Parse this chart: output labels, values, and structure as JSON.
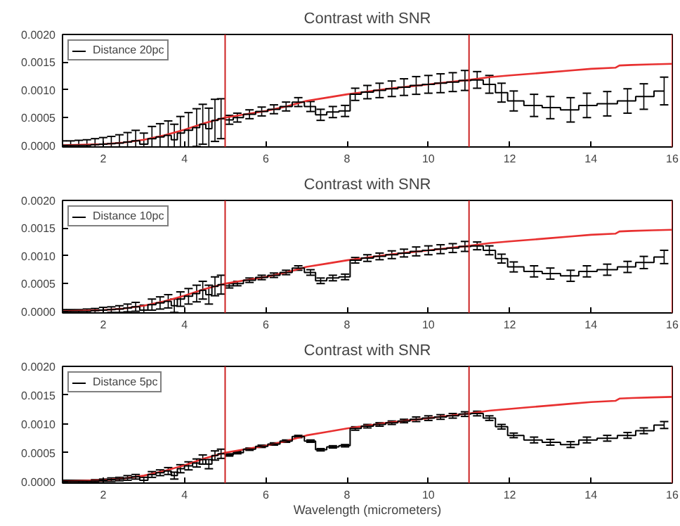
{
  "chart_data": [
    {
      "type": "line",
      "title": "Contrast with SNR",
      "xlim": [
        1,
        16
      ],
      "ylim": [
        -3e-05,
        0.002
      ],
      "xticks": [
        2,
        4,
        6,
        8,
        10,
        12,
        14,
        16
      ],
      "yticks": [
        {
          "value": 0,
          "label": "0.0000"
        },
        {
          "value": 0.0005,
          "label": "0.0005"
        },
        {
          "value": 0.001,
          "label": "0.0010"
        },
        {
          "value": 0.0015,
          "label": "0.0015"
        },
        {
          "value": 0.002,
          "label": "0.0020"
        }
      ],
      "grid": false,
      "legend": "top left",
      "marker": "none",
      "ref_lines": [
        {
          "axis": "x",
          "value": 5,
          "color": "#cc2222"
        },
        {
          "axis": "x",
          "value": 11,
          "color": "#cc2222"
        },
        {
          "axis": "x",
          "value": 16,
          "color": "#cc2222"
        }
      ],
      "series": [
        {
          "color": "#e83030",
          "x": [
            1,
            2,
            2.5,
            3,
            3.5,
            4,
            4.5,
            5,
            5.5,
            6,
            6.5,
            7,
            7.5,
            8,
            8.5,
            9,
            9.5,
            10,
            10.5,
            11,
            11.5,
            12,
            12.5,
            13,
            13.5,
            14,
            14.6,
            14.7,
            15,
            15.5,
            16
          ],
          "values": [
            0,
            2e-05,
            5e-05,
            0.0001,
            0.00018,
            0.00028,
            0.0004,
            0.0005,
            0.00056,
            0.00062,
            0.0007,
            0.0008,
            0.00086,
            0.00092,
            0.00097,
            0.00102,
            0.00106,
            0.0011,
            0.00114,
            0.00118,
            0.00123,
            0.00126,
            0.00129,
            0.00132,
            0.00135,
            0.00138,
            0.0014,
            0.00144,
            0.00145,
            0.00146,
            0.00147
          ]
        },
        {
          "name": "Distance 20pc",
          "type": "step",
          "color": "#000000",
          "x": [
            1.0,
            1.2,
            1.4,
            1.6,
            1.8,
            2.0,
            2.2,
            2.4,
            2.6,
            2.8,
            3.0,
            3.2,
            3.4,
            3.6,
            3.75,
            3.9,
            4.1,
            4.3,
            4.45,
            4.6,
            4.75,
            4.9,
            5.1,
            5.3,
            5.6,
            5.9,
            6.2,
            6.5,
            6.8,
            7.1,
            7.35,
            7.65,
            7.95,
            8.2,
            8.5,
            8.8,
            9.1,
            9.4,
            9.7,
            10.0,
            10.3,
            10.6,
            10.9,
            11.2,
            11.5,
            11.8,
            12.1,
            12.6,
            13.0,
            13.5,
            13.9,
            14.4,
            14.9,
            15.3,
            15.8
          ],
          "values": [
            0,
            0,
            0,
            0,
            1e-05,
            2e-05,
            3e-05,
            4e-05,
            6e-05,
            8e-05,
            2e-05,
            0.00012,
            0.00015,
            0.00018,
            0.0001,
            0.00022,
            0.00027,
            0.00032,
            0.00038,
            0.0003,
            0.00045,
            0.00048,
            0.00046,
            0.0005,
            0.00056,
            0.00061,
            0.00065,
            0.0007,
            0.00078,
            0.0007,
            0.00055,
            0.0006,
            0.00062,
            0.00092,
            0.00096,
            0.00099,
            0.00102,
            0.00105,
            0.00108,
            0.0011,
            0.00112,
            0.00114,
            0.00117,
            0.00118,
            0.0011,
            0.00095,
            0.0008,
            0.00072,
            0.00068,
            0.00064,
            0.00072,
            0.00075,
            0.0008,
            0.00088,
            0.00098
          ],
          "errors": [
            8e-05,
            8e-05,
            9e-05,
            0.0001,
            0.00011,
            0.00012,
            0.00013,
            0.00015,
            0.00017,
            0.00019,
            0.0002,
            0.00022,
            0.00024,
            0.00026,
            0.00028,
            0.0003,
            0.00032,
            0.00034,
            0.00036,
            0.00037,
            0.00038,
            0.00036,
            8e-05,
            8e-05,
            8e-05,
            8e-05,
            8e-05,
            8e-05,
            8e-05,
            9e-05,
            0.0001,
            0.0001,
            0.0001,
            0.00011,
            0.00012,
            0.00013,
            0.00014,
            0.00015,
            0.00016,
            0.00016,
            0.00017,
            0.00017,
            0.00018,
            0.00015,
            0.00016,
            0.00017,
            0.00018,
            0.0002,
            0.0002,
            0.00022,
            0.00022,
            0.00022,
            0.00022,
            0.00023,
            0.00025
          ]
        }
      ]
    },
    {
      "type": "line",
      "title": "Contrast with SNR",
      "xlim": [
        1,
        16
      ],
      "ylim": [
        -3e-05,
        0.002
      ],
      "xticks": [
        2,
        4,
        6,
        8,
        10,
        12,
        14,
        16
      ],
      "yticks": [
        {
          "value": 0,
          "label": "0.0000"
        },
        {
          "value": 0.0005,
          "label": "0.0005"
        },
        {
          "value": 0.001,
          "label": "0.0010"
        },
        {
          "value": 0.0015,
          "label": "0.0015"
        },
        {
          "value": 0.002,
          "label": "0.0020"
        }
      ],
      "grid": false,
      "legend": "top left",
      "marker": "none",
      "ref_lines": [
        {
          "axis": "x",
          "value": 5,
          "color": "#cc2222"
        },
        {
          "axis": "x",
          "value": 11,
          "color": "#cc2222"
        },
        {
          "axis": "x",
          "value": 16,
          "color": "#cc2222"
        }
      ],
      "series": [
        {
          "color": "#e83030",
          "x": [
            1,
            2,
            2.5,
            3,
            3.5,
            4,
            4.5,
            5,
            5.5,
            6,
            6.5,
            7,
            7.5,
            8,
            8.5,
            9,
            9.5,
            10,
            10.5,
            11,
            11.5,
            12,
            12.5,
            13,
            13.5,
            14,
            14.6,
            14.7,
            15,
            15.5,
            16
          ],
          "values": [
            0,
            2e-05,
            5e-05,
            0.0001,
            0.00018,
            0.00028,
            0.0004,
            0.0005,
            0.00056,
            0.00062,
            0.0007,
            0.0008,
            0.00086,
            0.00092,
            0.00097,
            0.00102,
            0.00106,
            0.0011,
            0.00114,
            0.00118,
            0.00123,
            0.00126,
            0.00129,
            0.00132,
            0.00135,
            0.00138,
            0.0014,
            0.00144,
            0.00145,
            0.00146,
            0.00147
          ]
        },
        {
          "name": "Distance 10pc",
          "type": "step",
          "color": "#000000",
          "x": [
            1.0,
            1.2,
            1.4,
            1.6,
            1.8,
            2.0,
            2.2,
            2.4,
            2.6,
            2.8,
            3.0,
            3.2,
            3.4,
            3.6,
            3.75,
            3.9,
            4.1,
            4.3,
            4.45,
            4.6,
            4.75,
            4.9,
            5.1,
            5.3,
            5.6,
            5.9,
            6.2,
            6.5,
            6.8,
            7.1,
            7.35,
            7.65,
            7.95,
            8.2,
            8.5,
            8.8,
            9.1,
            9.4,
            9.7,
            10.0,
            10.3,
            10.6,
            10.9,
            11.2,
            11.5,
            11.8,
            12.1,
            12.6,
            13.0,
            13.5,
            13.9,
            14.4,
            14.9,
            15.3,
            15.8
          ],
          "values": [
            0,
            0,
            0,
            0,
            1e-05,
            2e-05,
            3e-05,
            4e-05,
            6e-05,
            8e-05,
            2e-05,
            0.00012,
            0.00015,
            0.00018,
            0.0001,
            0.00022,
            0.00027,
            0.00032,
            0.00038,
            0.0003,
            0.00045,
            0.00048,
            0.00046,
            0.0005,
            0.00056,
            0.00061,
            0.00065,
            0.0007,
            0.00078,
            0.0007,
            0.00055,
            0.0006,
            0.00062,
            0.00092,
            0.00096,
            0.00099,
            0.00102,
            0.00105,
            0.00108,
            0.0011,
            0.00112,
            0.00114,
            0.00117,
            0.00118,
            0.0011,
            0.00095,
            0.0008,
            0.00072,
            0.00068,
            0.00064,
            0.00072,
            0.00075,
            0.0008,
            0.00088,
            0.00098
          ],
          "errors": [
            3e-05,
            3e-05,
            3e-05,
            4e-05,
            4e-05,
            5e-05,
            5e-05,
            6e-05,
            7e-05,
            8e-05,
            9e-05,
            0.0001,
            0.00011,
            0.00012,
            0.00012,
            0.00013,
            0.00014,
            0.00015,
            0.00016,
            0.00017,
            0.00017,
            0.00017,
            4e-05,
            4e-05,
            4e-05,
            4e-05,
            4e-05,
            4e-05,
            4e-05,
            5e-05,
            5e-05,
            5e-05,
            5e-05,
            5e-05,
            6e-05,
            6e-05,
            7e-05,
            7e-05,
            8e-05,
            8e-05,
            8e-05,
            8e-05,
            9e-05,
            7e-05,
            8e-05,
            8e-05,
            9e-05,
            0.0001,
            0.0001,
            0.0001,
            0.0001,
            0.0001,
            0.0001,
            0.00011,
            0.00012
          ]
        }
      ]
    },
    {
      "type": "line",
      "title": "Contrast with SNR",
      "xlabel": "Wavelength (micrometers)",
      "xlim": [
        1,
        16
      ],
      "ylim": [
        -3e-05,
        0.002
      ],
      "xticks": [
        2,
        4,
        6,
        8,
        10,
        12,
        14,
        16
      ],
      "yticks": [
        {
          "value": 0,
          "label": "0.0000"
        },
        {
          "value": 0.0005,
          "label": "0.0005"
        },
        {
          "value": 0.001,
          "label": "0.0010"
        },
        {
          "value": 0.0015,
          "label": "0.0015"
        },
        {
          "value": 0.002,
          "label": "0.0020"
        }
      ],
      "grid": false,
      "legend": "top left",
      "marker": "none",
      "ref_lines": [
        {
          "axis": "x",
          "value": 5,
          "color": "#cc2222"
        },
        {
          "axis": "x",
          "value": 11,
          "color": "#cc2222"
        },
        {
          "axis": "x",
          "value": 16,
          "color": "#cc2222"
        }
      ],
      "series": [
        {
          "color": "#e83030",
          "x": [
            1,
            2,
            2.5,
            3,
            3.5,
            4,
            4.5,
            5,
            5.5,
            6,
            6.5,
            7,
            7.5,
            8,
            8.5,
            9,
            9.5,
            10,
            10.5,
            11,
            11.5,
            12,
            12.5,
            13,
            13.5,
            14,
            14.6,
            14.7,
            15,
            15.5,
            16
          ],
          "values": [
            0,
            2e-05,
            5e-05,
            0.0001,
            0.00018,
            0.00028,
            0.0004,
            0.0005,
            0.00056,
            0.00062,
            0.0007,
            0.0008,
            0.00086,
            0.00092,
            0.00097,
            0.00102,
            0.00106,
            0.0011,
            0.00114,
            0.00118,
            0.00123,
            0.00126,
            0.00129,
            0.00132,
            0.00135,
            0.00138,
            0.0014,
            0.00144,
            0.00145,
            0.00146,
            0.00147
          ]
        },
        {
          "name": "Distance 5pc",
          "type": "step",
          "color": "#000000",
          "x": [
            1.0,
            1.2,
            1.4,
            1.6,
            1.8,
            2.0,
            2.2,
            2.4,
            2.6,
            2.8,
            3.0,
            3.2,
            3.4,
            3.6,
            3.75,
            3.9,
            4.1,
            4.3,
            4.45,
            4.6,
            4.75,
            4.9,
            5.1,
            5.3,
            5.6,
            5.9,
            6.2,
            6.5,
            6.8,
            7.1,
            7.35,
            7.65,
            7.95,
            8.2,
            8.5,
            8.8,
            9.1,
            9.4,
            9.7,
            10.0,
            10.3,
            10.6,
            10.9,
            11.2,
            11.5,
            11.8,
            12.1,
            12.6,
            13.0,
            13.5,
            13.9,
            14.4,
            14.9,
            15.3,
            15.8
          ],
          "values": [
            0,
            0,
            0,
            0,
            1e-05,
            2e-05,
            3e-05,
            4e-05,
            6e-05,
            8e-05,
            2e-05,
            0.00012,
            0.00015,
            0.00018,
            0.0001,
            0.00022,
            0.00027,
            0.00032,
            0.00038,
            0.0003,
            0.00045,
            0.00048,
            0.00046,
            0.0005,
            0.00056,
            0.00061,
            0.00065,
            0.0007,
            0.00078,
            0.0007,
            0.00055,
            0.0006,
            0.00062,
            0.00092,
            0.00096,
            0.00099,
            0.00102,
            0.00105,
            0.00108,
            0.0011,
            0.00112,
            0.00114,
            0.00117,
            0.00118,
            0.0011,
            0.00095,
            0.0008,
            0.00072,
            0.00068,
            0.00064,
            0.00072,
            0.00075,
            0.0008,
            0.00088,
            0.00098
          ],
          "errors": [
            2e-05,
            2e-05,
            2e-05,
            2e-05,
            2e-05,
            2e-05,
            3e-05,
            3e-05,
            4e-05,
            4e-05,
            5e-05,
            5e-05,
            5e-05,
            6e-05,
            6e-05,
            7e-05,
            7e-05,
            7e-05,
            8e-05,
            8e-05,
            8e-05,
            8e-05,
            2e-05,
            2e-05,
            2e-05,
            2e-05,
            2e-05,
            2e-05,
            2e-05,
            2e-05,
            2e-05,
            2e-05,
            2e-05,
            3e-05,
            3e-05,
            3e-05,
            3e-05,
            3e-05,
            4e-05,
            4e-05,
            4e-05,
            4e-05,
            4e-05,
            4e-05,
            4e-05,
            4e-05,
            4e-05,
            5e-05,
            5e-05,
            5e-05,
            5e-05,
            5e-05,
            5e-05,
            5e-05,
            6e-05
          ]
        }
      ]
    }
  ]
}
